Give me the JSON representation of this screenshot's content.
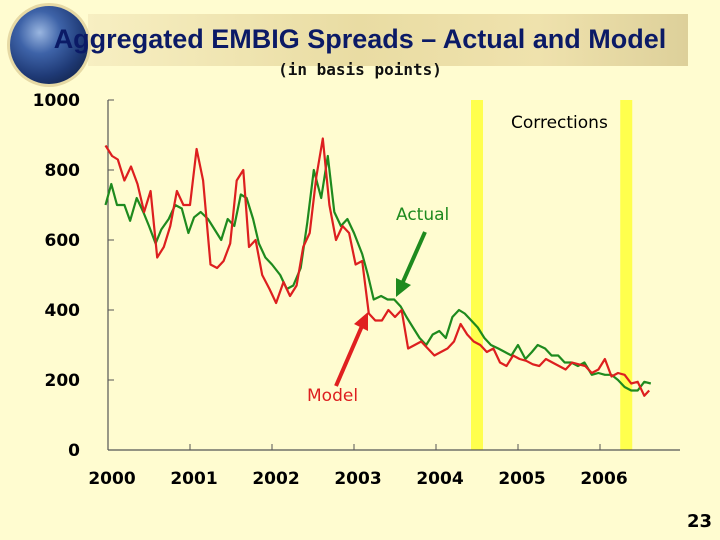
{
  "slide": {
    "title": "Aggregated EMBIG Spreads – Actual and Model",
    "subtitle": "(in basis points)",
    "page_number": "23"
  },
  "chart_data": {
    "type": "line",
    "title": "Aggregated EMBIG Spreads – Actual and Model",
    "subtitle": "(in basis points)",
    "xlabel": "",
    "ylabel": "",
    "ylim": [
      0,
      1000
    ],
    "xlim": [
      2000,
      2006.7
    ],
    "y_ticks": [
      0,
      200,
      400,
      600,
      800,
      1000
    ],
    "x_ticks": [
      2000,
      2001,
      2002,
      2003,
      2004,
      2005,
      2006
    ],
    "x_tick_labels": [
      "2000",
      "2001",
      "2002",
      "2003",
      "2004",
      "2005",
      "2006"
    ],
    "grid": false,
    "legend": "none",
    "series": [
      {
        "name": "Actual",
        "color": "#1e8a1e",
        "x": [
          1999.97,
          2000.04,
          2000.11,
          2000.2,
          2000.27,
          2000.35,
          2000.43,
          2000.5,
          2000.58,
          2000.65,
          2000.74,
          2000.82,
          2000.9,
          2000.98,
          2001.05,
          2001.13,
          2001.22,
          2001.3,
          2001.38,
          2001.46,
          2001.54,
          2001.62,
          2001.69,
          2001.77,
          2001.84,
          2001.92,
          2002.0,
          2002.1,
          2002.18,
          2002.26,
          2002.35,
          2002.43,
          2002.51,
          2002.6,
          2002.68,
          2002.76,
          2002.84,
          2002.92,
          2003.0,
          2003.1,
          2003.17,
          2003.24,
          2003.33,
          2003.41,
          2003.49,
          2003.57,
          2003.64,
          2003.72,
          2003.8,
          2003.88,
          2003.96,
          2004.04,
          2004.12,
          2004.2,
          2004.28,
          2004.35,
          2004.43,
          2004.51,
          2004.59,
          2004.67,
          2004.76,
          2004.84,
          2004.92,
          2005.0,
          2005.09,
          2005.17,
          2005.24,
          2005.33,
          2005.41,
          2005.49,
          2005.57,
          2005.65,
          2005.73,
          2005.81,
          2005.9,
          2005.98,
          2006.06,
          2006.14,
          2006.22,
          2006.3,
          2006.38,
          2006.46,
          2006.54,
          2006.62
        ],
        "y": [
          700,
          760,
          700,
          700,
          655,
          720,
          680,
          640,
          590,
          630,
          660,
          700,
          690,
          620,
          665,
          680,
          660,
          630,
          600,
          660,
          640,
          730,
          720,
          660,
          590,
          550,
          530,
          500,
          460,
          470,
          520,
          650,
          800,
          720,
          840,
          680,
          640,
          660,
          620,
          560,
          500,
          430,
          440,
          430,
          430,
          410,
          380,
          350,
          320,
          300,
          330,
          340,
          320,
          380,
          400,
          390,
          370,
          350,
          320,
          300,
          290,
          280,
          270,
          300,
          260,
          280,
          300,
          290,
          270,
          270,
          250,
          250,
          240,
          250,
          215,
          220,
          215,
          215,
          200,
          180,
          170,
          170,
          195,
          190
        ]
      },
      {
        "name": "Model",
        "color": "#dd1f1f",
        "x": [
          1999.97,
          2000.05,
          2000.12,
          2000.2,
          2000.28,
          2000.36,
          2000.44,
          2000.52,
          2000.6,
          2000.68,
          2000.76,
          2000.84,
          2000.92,
          2001.0,
          2001.08,
          2001.16,
          2001.25,
          2001.33,
          2001.41,
          2001.49,
          2001.57,
          2001.65,
          2001.72,
          2001.8,
          2001.88,
          2001.97,
          2002.05,
          2002.14,
          2002.22,
          2002.3,
          2002.38,
          2002.46,
          2002.54,
          2002.62,
          2002.7,
          2002.78,
          2002.86,
          2002.94,
          2003.02,
          2003.1,
          2003.18,
          2003.26,
          2003.34,
          2003.42,
          2003.5,
          2003.58,
          2003.66,
          2003.74,
          2003.82,
          2003.9,
          2003.98,
          2004.06,
          2004.14,
          2004.22,
          2004.3,
          2004.38,
          2004.46,
          2004.54,
          2004.62,
          2004.7,
          2004.78,
          2004.86,
          2004.94,
          2005.02,
          2005.1,
          2005.18,
          2005.26,
          2005.34,
          2005.42,
          2005.5,
          2005.58,
          2005.66,
          2005.74,
          2005.82,
          2005.9,
          2005.98,
          2006.06,
          2006.14,
          2006.22,
          2006.3,
          2006.38,
          2006.46,
          2006.54,
          2006.6
        ],
        "y": [
          870,
          840,
          830,
          770,
          810,
          760,
          680,
          740,
          550,
          580,
          640,
          740,
          700,
          700,
          860,
          770,
          530,
          520,
          540,
          590,
          770,
          800,
          580,
          600,
          500,
          460,
          420,
          480,
          440,
          470,
          580,
          620,
          780,
          890,
          700,
          600,
          640,
          620,
          530,
          540,
          390,
          370,
          370,
          400,
          380,
          400,
          290,
          300,
          310,
          290,
          270,
          280,
          290,
          310,
          360,
          330,
          310,
          300,
          280,
          290,
          250,
          240,
          270,
          260,
          255,
          245,
          240,
          260,
          250,
          240,
          230,
          250,
          245,
          240,
          220,
          230,
          260,
          210,
          220,
          215,
          190,
          195,
          155,
          170
        ]
      }
    ],
    "highlight_bars": [
      {
        "x": 2004.5,
        "color": "#ffff4d"
      },
      {
        "x": 2006.32,
        "color": "#ffff4d"
      }
    ],
    "annotations": [
      {
        "text": "Corrections",
        "color": "#000000"
      },
      {
        "text": "Actual",
        "color": "#1e8a1e"
      },
      {
        "text": "Model",
        "color": "#dd1f1f"
      }
    ]
  }
}
